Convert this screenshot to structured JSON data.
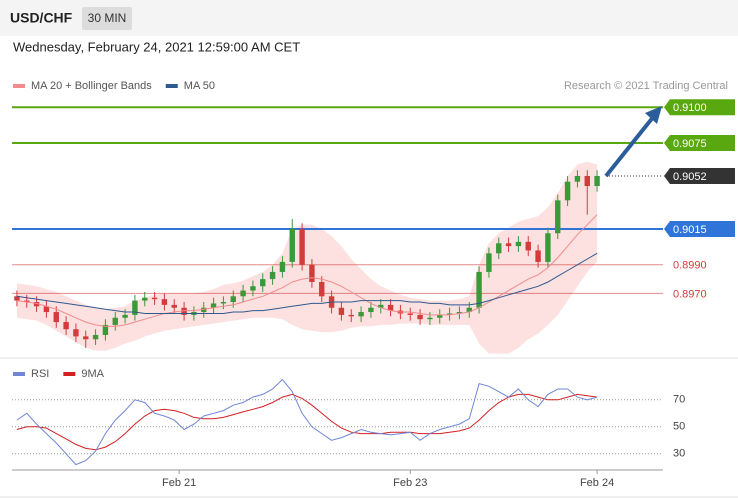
{
  "header": {
    "symbol": "USD/CHF",
    "timeframe": "30 MIN",
    "datetime": "Wednesday, February 24, 2021 12:59:00 AM CET",
    "credit": "Research © 2021 Trading Central"
  },
  "chart_data": [
    {
      "type": "candlestick",
      "up_color": "#3a9a3a",
      "down_color": "#d23c3c",
      "xlim": [
        -0.5,
        59.5
      ],
      "ylim": [
        0.8927,
        0.9126
      ],
      "open": [
        0.8968,
        0.8965,
        0.8964,
        0.8961,
        0.8957,
        0.895,
        0.8945,
        0.894,
        0.8938,
        0.8941,
        0.8948,
        0.8953,
        0.8955,
        0.8965,
        0.8967,
        0.8966,
        0.8962,
        0.896,
        0.8955,
        0.8957,
        0.896,
        0.8963,
        0.8964,
        0.8968,
        0.8972,
        0.8975,
        0.898,
        0.8985,
        0.8992,
        0.9015,
        0.899,
        0.8978,
        0.8968,
        0.896,
        0.8955,
        0.8954,
        0.8957,
        0.896,
        0.8962,
        0.8958,
        0.8956,
        0.8955,
        0.8952,
        0.8953,
        0.8955,
        0.8956,
        0.8957,
        0.896,
        0.8985,
        0.8998,
        0.9005,
        0.9003,
        0.9006,
        0.9,
        0.8992,
        0.9012,
        0.9035,
        0.9048,
        0.9052,
        0.9045
      ],
      "high": [
        0.8972,
        0.8969,
        0.8968,
        0.8965,
        0.8961,
        0.8954,
        0.8949,
        0.8944,
        0.8945,
        0.8952,
        0.8957,
        0.8959,
        0.8969,
        0.8971,
        0.8971,
        0.897,
        0.8966,
        0.8964,
        0.8961,
        0.8964,
        0.8967,
        0.8968,
        0.8972,
        0.8976,
        0.8979,
        0.8984,
        0.8989,
        0.8996,
        0.9022,
        0.9019,
        0.8994,
        0.8982,
        0.8972,
        0.8964,
        0.8959,
        0.8961,
        0.8964,
        0.8966,
        0.8966,
        0.8962,
        0.896,
        0.8959,
        0.8957,
        0.8959,
        0.896,
        0.8961,
        0.8964,
        0.8989,
        0.9002,
        0.9009,
        0.9009,
        0.901,
        0.901,
        0.9004,
        0.9016,
        0.9039,
        0.9052,
        0.9056,
        0.9056,
        0.9056
      ],
      "low": [
        0.8961,
        0.896,
        0.8957,
        0.8953,
        0.8946,
        0.8941,
        0.8936,
        0.8932,
        0.8934,
        0.8937,
        0.8944,
        0.8949,
        0.8951,
        0.8961,
        0.8962,
        0.8958,
        0.8956,
        0.8951,
        0.8951,
        0.8953,
        0.8956,
        0.8959,
        0.896,
        0.8964,
        0.8968,
        0.8971,
        0.8976,
        0.8981,
        0.8988,
        0.8986,
        0.8974,
        0.8964,
        0.8956,
        0.8951,
        0.895,
        0.895,
        0.8953,
        0.8956,
        0.8954,
        0.8952,
        0.8951,
        0.8948,
        0.8948,
        0.8949,
        0.8951,
        0.8952,
        0.8953,
        0.8956,
        0.8981,
        0.8994,
        0.8999,
        0.8999,
        0.8996,
        0.8988,
        0.8988,
        0.9008,
        0.9031,
        0.9044,
        0.9025,
        0.9041
      ],
      "close": [
        0.8965,
        0.8964,
        0.8961,
        0.8957,
        0.895,
        0.8945,
        0.894,
        0.8938,
        0.8941,
        0.8948,
        0.8953,
        0.8955,
        0.8965,
        0.8967,
        0.8966,
        0.8962,
        0.896,
        0.8955,
        0.8957,
        0.896,
        0.8963,
        0.8964,
        0.8968,
        0.8972,
        0.8975,
        0.898,
        0.8985,
        0.8992,
        0.9015,
        0.899,
        0.8978,
        0.8968,
        0.896,
        0.8955,
        0.8954,
        0.8957,
        0.896,
        0.8962,
        0.8958,
        0.8956,
        0.8955,
        0.8952,
        0.8953,
        0.8955,
        0.8956,
        0.8957,
        0.896,
        0.8985,
        0.8998,
        0.9005,
        0.9003,
        0.9006,
        0.9,
        0.8992,
        0.9012,
        0.9035,
        0.9048,
        0.9052,
        0.9045,
        0.9052
      ],
      "series": [
        {
          "name": "MA 20 + Bollinger Bands",
          "color": "#f08c8c",
          "band_color": "#fde0e0",
          "values": [
            0.8965,
            0.8964,
            0.8963,
            0.8961,
            0.8959,
            0.8956,
            0.8953,
            0.895,
            0.8948,
            0.8947,
            0.8947,
            0.8948,
            0.895,
            0.8952,
            0.8954,
            0.8956,
            0.8957,
            0.8958,
            0.8958,
            0.8959,
            0.896,
            0.8961,
            0.8962,
            0.8964,
            0.8966,
            0.8968,
            0.8971,
            0.8974,
            0.8978,
            0.898,
            0.8981,
            0.898,
            0.8978,
            0.8975,
            0.8971,
            0.8967,
            0.8963,
            0.896,
            0.8958,
            0.8957,
            0.8957,
            0.8956,
            0.8955,
            0.8955,
            0.8955,
            0.8956,
            0.8957,
            0.896,
            0.8964,
            0.8968,
            0.8972,
            0.8976,
            0.898,
            0.8983,
            0.8988,
            0.8995,
            0.9003,
            0.9011,
            0.9018,
            0.9025
          ],
          "upper": [
            0.8977,
            0.8976,
            0.8975,
            0.8973,
            0.8971,
            0.8968,
            0.8965,
            0.8962,
            0.896,
            0.8959,
            0.896,
            0.8961,
            0.8965,
            0.8967,
            0.8969,
            0.897,
            0.897,
            0.897,
            0.897,
            0.8971,
            0.8973,
            0.8976,
            0.8977,
            0.8979,
            0.8982,
            0.8985,
            0.899,
            0.8998,
            0.9015,
            0.9018,
            0.9018,
            0.9015,
            0.901,
            0.9003,
            0.8994,
            0.8987,
            0.898,
            0.8975,
            0.8972,
            0.8969,
            0.8967,
            0.8966,
            0.8965,
            0.8965,
            0.8965,
            0.8966,
            0.8968,
            0.899,
            0.9005,
            0.9012,
            0.9016,
            0.902,
            0.9022,
            0.9024,
            0.903,
            0.904,
            0.9052,
            0.906,
            0.9062,
            0.906
          ],
          "lower": [
            0.8953,
            0.8952,
            0.8951,
            0.8948,
            0.8944,
            0.894,
            0.8936,
            0.8932,
            0.893,
            0.893,
            0.8932,
            0.8935,
            0.8937,
            0.894,
            0.8942,
            0.8944,
            0.8945,
            0.8946,
            0.8947,
            0.8948,
            0.8949,
            0.895,
            0.8951,
            0.8952,
            0.8953,
            0.8953,
            0.8953,
            0.8952,
            0.8948,
            0.8945,
            0.8944,
            0.8943,
            0.8943,
            0.8944,
            0.8946,
            0.8947,
            0.8947,
            0.8948,
            0.8948,
            0.8949,
            0.8949,
            0.8949,
            0.8948,
            0.8948,
            0.8948,
            0.8948,
            0.8948,
            0.8935,
            0.8928,
            0.8928,
            0.8928,
            0.8932,
            0.8938,
            0.8942,
            0.8948,
            0.8955,
            0.8965,
            0.8975,
            0.8985,
            0.8992
          ]
        },
        {
          "name": "MA 50",
          "color": "#2f5a8f",
          "values": [
            0.8968,
            0.8967,
            0.8966,
            0.8965,
            0.8964,
            0.8963,
            0.8962,
            0.8961,
            0.896,
            0.8959,
            0.8958,
            0.8957,
            0.8957,
            0.8956,
            0.8956,
            0.8956,
            0.8956,
            0.8956,
            0.8956,
            0.8956,
            0.8956,
            0.8956,
            0.8957,
            0.8957,
            0.8958,
            0.8958,
            0.8959,
            0.896,
            0.8961,
            0.8962,
            0.8963,
            0.8963,
            0.8964,
            0.8964,
            0.8964,
            0.8965,
            0.8965,
            0.8965,
            0.8965,
            0.8965,
            0.8964,
            0.8964,
            0.8963,
            0.8963,
            0.8962,
            0.8962,
            0.8962,
            0.8963,
            0.8965,
            0.8967,
            0.8969,
            0.8971,
            0.8973,
            0.8975,
            0.8978,
            0.8982,
            0.8986,
            0.899,
            0.8994,
            0.8998
          ]
        }
      ],
      "levels": [
        {
          "value": 0.91,
          "label": "0.9100",
          "color": "#5aa80f",
          "style": "solid",
          "boxed": true
        },
        {
          "value": 0.9075,
          "label": "0.9075",
          "color": "#5aa80f",
          "style": "solid",
          "boxed": true
        },
        {
          "value": 0.9052,
          "label": "0.9052",
          "color": "#333333",
          "style": "dotted",
          "boxed": true
        },
        {
          "value": 0.9015,
          "label": "0.9015",
          "color": "#2f74d8",
          "style": "solid",
          "boxed": true
        },
        {
          "value": 0.899,
          "label": "0.8990",
          "color": "#d23c3c",
          "style": "thin",
          "boxed": false
        },
        {
          "value": 0.897,
          "label": "0.8970",
          "color": "#d23c3c",
          "style": "thin",
          "boxed": false
        }
      ]
    },
    {
      "type": "line",
      "xlim": [
        -0.5,
        59.5
      ],
      "ylim": [
        18,
        98
      ],
      "yticks": [
        70,
        50,
        30
      ],
      "xticks": [
        {
          "value": 16.5,
          "label": "Feb 21"
        },
        {
          "value": 40,
          "label": "Feb 23"
        },
        {
          "value": 59,
          "label": "Feb 24"
        }
      ],
      "series": [
        {
          "name": "RSI",
          "color": "#6f86d6",
          "values": [
            55,
            60,
            52,
            45,
            38,
            30,
            22,
            25,
            32,
            45,
            55,
            62,
            70,
            68,
            60,
            58,
            55,
            48,
            52,
            58,
            60,
            62,
            66,
            68,
            72,
            74,
            78,
            85,
            76,
            60,
            50,
            45,
            40,
            42,
            45,
            48,
            46,
            45,
            44,
            45,
            46,
            40,
            45,
            48,
            50,
            52,
            56,
            82,
            80,
            76,
            72,
            78,
            70,
            65,
            74,
            78,
            78,
            72,
            70,
            72
          ]
        },
        {
          "name": "9MA",
          "color": "#d42020",
          "values": [
            48,
            50,
            50,
            49,
            45,
            41,
            37,
            34,
            33,
            35,
            39,
            45,
            52,
            58,
            62,
            63,
            62,
            60,
            57,
            56,
            56,
            57,
            59,
            61,
            63,
            65,
            68,
            72,
            74,
            71,
            66,
            60,
            54,
            49,
            46,
            45,
            45,
            45,
            46,
            46,
            46,
            45,
            45,
            45,
            46,
            47,
            49,
            55,
            62,
            68,
            72,
            74,
            74,
            72,
            70,
            70,
            72,
            74,
            73,
            72
          ]
        }
      ]
    }
  ]
}
